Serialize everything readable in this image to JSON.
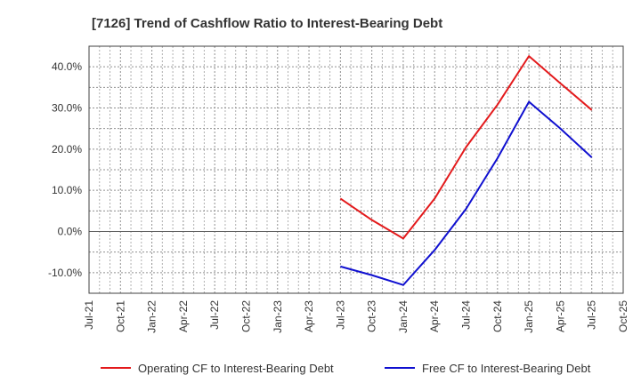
{
  "chart_data": {
    "type": "line",
    "title": "[7126]  Trend of Cashflow Ratio to Interest-Bearing Debt",
    "xlabel": "",
    "ylabel": "",
    "ylim": [
      -15,
      45
    ],
    "y_ticks": [
      -10,
      0,
      10,
      20,
      30,
      40
    ],
    "y_tick_labels": [
      "-10.0%",
      "0.0%",
      "10.0%",
      "20.0%",
      "30.0%",
      "40.0%"
    ],
    "categories": [
      "Jul-21",
      "Oct-21",
      "Jan-22",
      "Apr-22",
      "Jul-22",
      "Oct-22",
      "Jan-23",
      "Apr-23",
      "Jul-23",
      "Oct-23",
      "Jan-24",
      "Apr-24",
      "Jul-24",
      "Oct-24",
      "Jan-25",
      "Apr-25",
      "Jul-25",
      "Oct-25"
    ],
    "grid": true,
    "legend_position": "bottom",
    "series": [
      {
        "name": "Operating CF to Interest-Bearing Debt",
        "color": "#e31a1c",
        "values": [
          null,
          null,
          null,
          null,
          null,
          null,
          null,
          null,
          8.0,
          2.8,
          -1.7,
          8.0,
          20.5,
          30.8,
          42.6,
          36.0,
          29.5,
          null
        ]
      },
      {
        "name": "Free CF to Interest-Bearing Debt",
        "color": "#1010d0",
        "values": [
          null,
          null,
          null,
          null,
          null,
          null,
          null,
          null,
          -8.5,
          -10.6,
          -13.0,
          -4.5,
          5.5,
          17.8,
          31.5,
          25.0,
          18.0,
          null
        ]
      }
    ]
  }
}
